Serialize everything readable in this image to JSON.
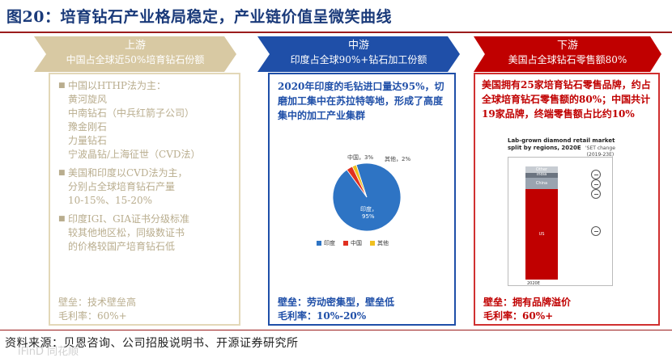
{
  "title": "图20：培育钻石产业格局稳定，产业链价值呈微笑曲线",
  "upstream": {
    "header1": "上游",
    "header2": "中国占全球近50%培育钻石份额",
    "block1": [
      "中国以HTHP法为主：",
      "黄河旋风",
      "中南钻石（中兵红箭子公司）",
      "豫金刚石",
      "力量钻石",
      "宁波晶钻/上海征世（CVD法）"
    ],
    "block2": [
      "美国和印度以CVD法为主，",
      "分别占全球培育钻石产量",
      "10-15%、15-20%"
    ],
    "block3": [
      "印度IGI、GIA证书分级标准",
      "较其他地区松，同级数证书",
      "的价格较国产培育钻石低"
    ],
    "foot1": "壁垒：技术壁垒高",
    "foot2": "毛利率：60%+"
  },
  "midstream": {
    "header1": "中游",
    "header2": "印度占全球90%+钻石加工份额",
    "text": "2020年印度的毛钻进口量达95%，切磨加工集中在苏拉特等地，形成了高度集中的加工产业集群",
    "foot1": "壁垒：劳动密集型，壁垒低",
    "foot2": "毛利率：10%-20%",
    "pie_labels": {
      "china": "中国，3%",
      "other": "其他，2%",
      "india_name": "印度，",
      "india_val": "95%"
    },
    "legend": [
      "印度",
      "中国",
      "其他"
    ]
  },
  "downstream": {
    "header1": "下游",
    "header2": "美国占全球钻石零售额80%",
    "text": "美国拥有25家培育钻石零售品牌，约占全球培育钻石零售额的80%；中国共计19家品牌，终端零售额占比约10%",
    "foot1": "壁垒：拥有品牌溢价",
    "foot2": "毛利率：60%+",
    "mini_title1": "Lab-grown diamond retail market",
    "mini_title2": "split by regions, 2020E",
    "mini_sub1": "'SET change",
    "mini_sub2": "(2019-23E)",
    "seg_labels": [
      "Other",
      "India",
      "China",
      "US"
    ],
    "year": "2020E"
  },
  "chart_data": [
    {
      "type": "pie",
      "title": "",
      "categories": [
        "印度",
        "中国",
        "其他"
      ],
      "values": [
        95,
        3,
        2
      ],
      "colors": [
        "#2e74c4",
        "#e03020",
        "#f0c020"
      ]
    },
    {
      "type": "bar",
      "title": "Lab-grown diamond retail market split by regions, 2020E",
      "categories": [
        "2020E"
      ],
      "series": [
        {
          "name": "US",
          "values": [
            80
          ]
        },
        {
          "name": "China",
          "values": [
            10
          ]
        },
        {
          "name": "India",
          "values": [
            4
          ]
        },
        {
          "name": "Other",
          "values": [
            6
          ]
        }
      ]
    }
  ],
  "source": "资料来源：贝恩咨询、公司招股说明书、开源证券研究所",
  "watermark": "iFinD 同花顺"
}
